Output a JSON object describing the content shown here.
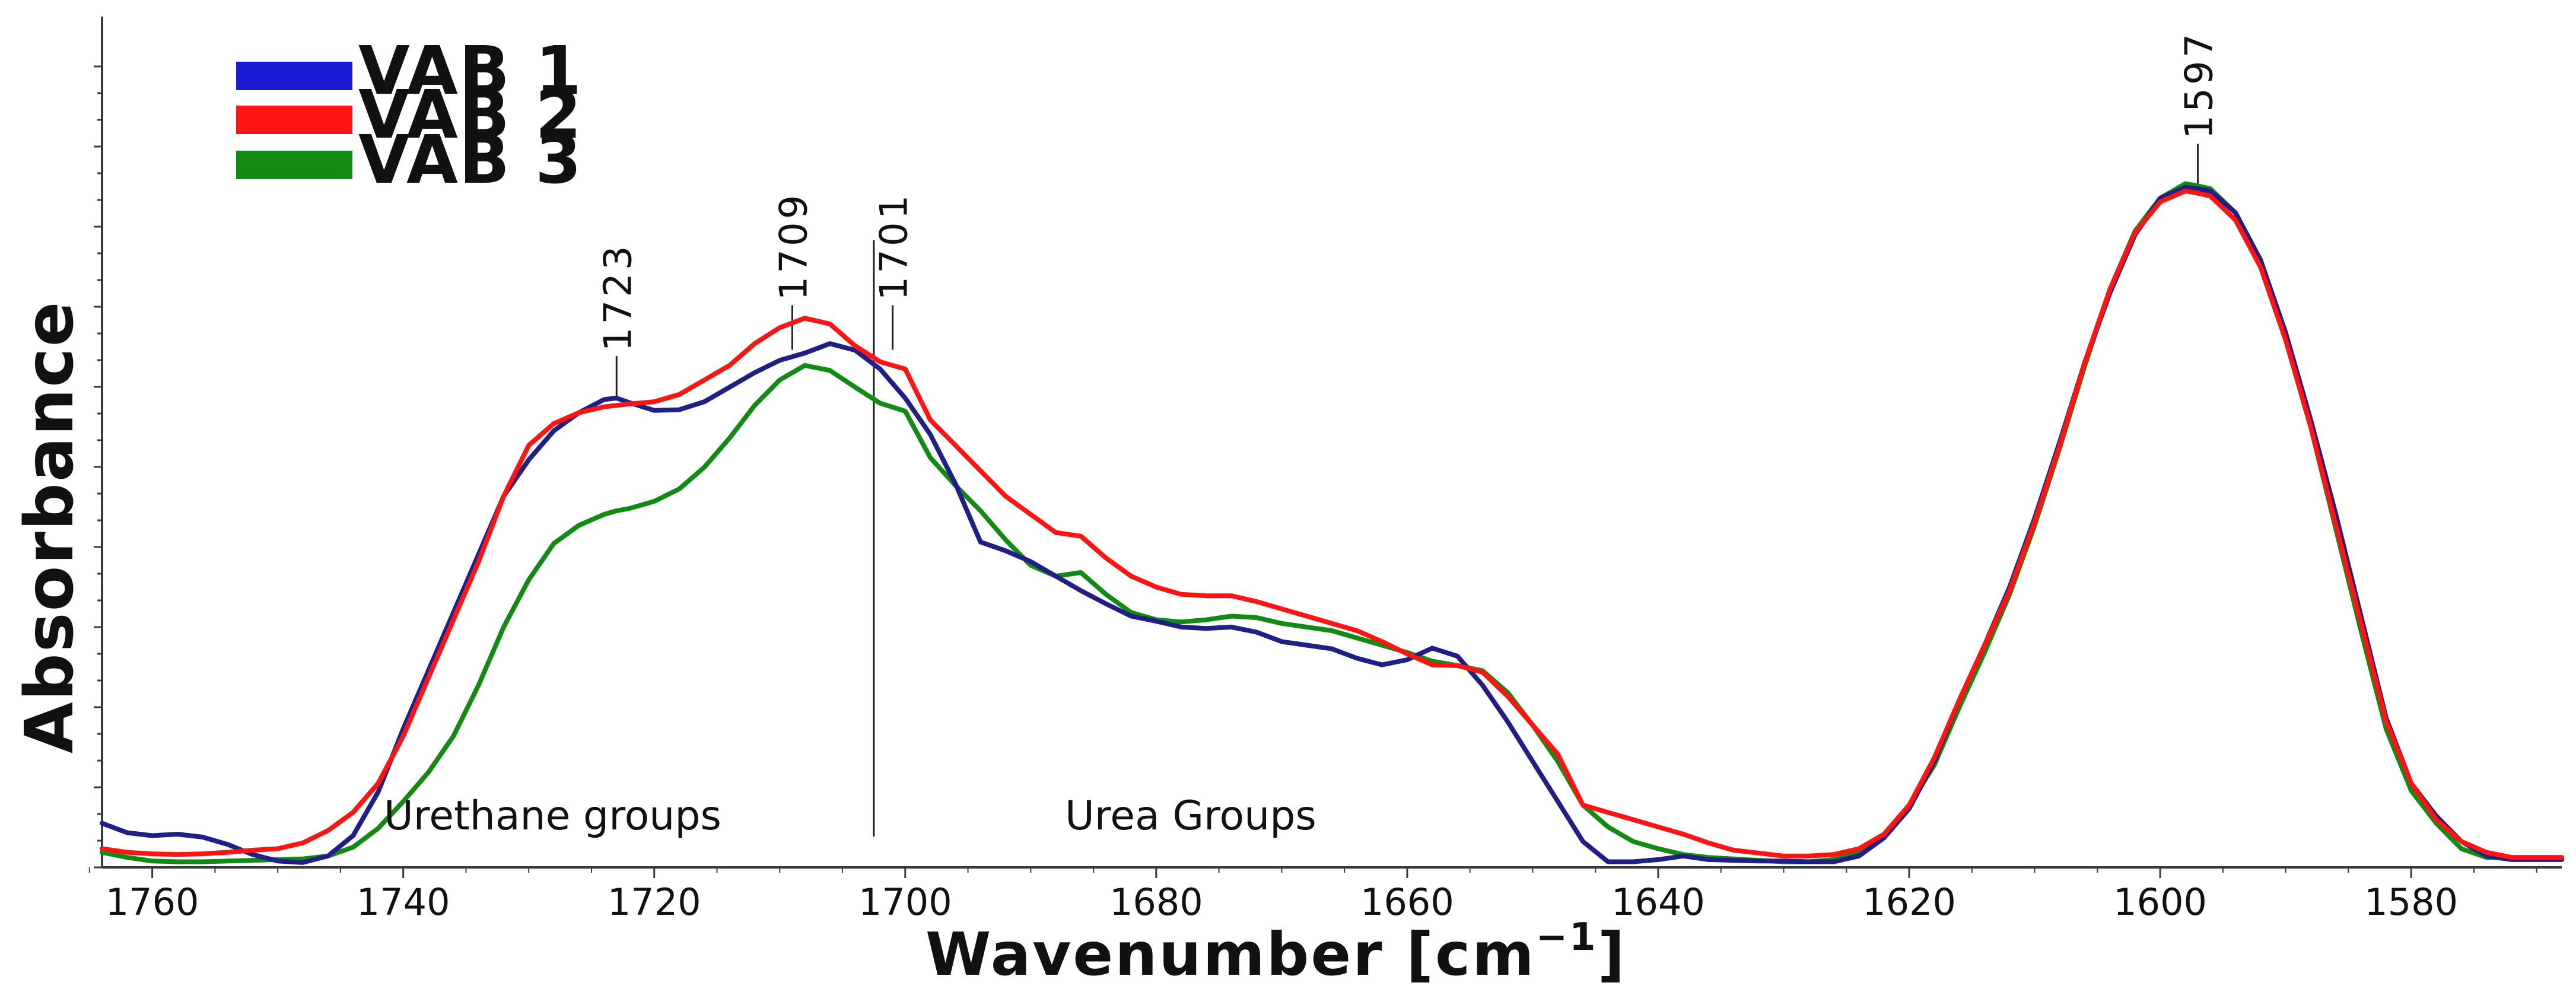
{
  "chart_data": {
    "type": "line",
    "title": "",
    "xlabel": "Wavenumber [cm",
    "xlabel_sup": "−1",
    "xlabel_end": "]",
    "ylabel": "Absorbance",
    "xlim": [
      1764,
      1568
    ],
    "ylim": [
      0,
      1.0
    ],
    "x_inverted": true,
    "grid": false,
    "legend_position": "top-left",
    "x_ticks": [
      1760,
      1740,
      1720,
      1700,
      1680,
      1660,
      1640,
      1620,
      1600,
      1580
    ],
    "x_tick_labels": [
      "1760",
      "1740",
      "1720",
      "1700",
      "1680",
      "1660",
      "1640",
      "1620",
      "1600",
      "1580"
    ],
    "series": [
      {
        "name": "VAB 1",
        "color": "#1f1f86",
        "legend_color": "#1b1bd4",
        "x": [
          1764,
          1762,
          1760,
          1758,
          1756,
          1754,
          1752,
          1750,
          1748,
          1746,
          1744,
          1742,
          1740,
          1738,
          1736,
          1734,
          1732,
          1730,
          1728,
          1726,
          1724,
          1723,
          1722,
          1720,
          1718,
          1716,
          1714,
          1712,
          1710,
          1708,
          1706,
          1704,
          1702,
          1700,
          1698,
          1696,
          1694,
          1692,
          1690,
          1688,
          1686,
          1684,
          1682,
          1680,
          1678,
          1676,
          1674,
          1672,
          1670,
          1668,
          1666,
          1664,
          1662,
          1660,
          1658,
          1656,
          1654,
          1652,
          1650,
          1648,
          1646,
          1644,
          1642,
          1640,
          1638,
          1636,
          1634,
          1632,
          1630,
          1628,
          1626,
          1624,
          1622,
          1620,
          1618,
          1616,
          1614,
          1612,
          1610,
          1608,
          1606,
          1604,
          1602,
          1600,
          1598,
          1597,
          1596,
          1594,
          1592,
          1590,
          1588,
          1586,
          1584,
          1582,
          1580,
          1578,
          1576,
          1574,
          1572,
          1570,
          1568
        ],
        "values": [
          0.055,
          0.042,
          0.038,
          0.04,
          0.036,
          0.026,
          0.012,
          0.003,
          0.001,
          0.01,
          0.038,
          0.098,
          0.185,
          0.265,
          0.345,
          0.425,
          0.505,
          0.555,
          0.595,
          0.62,
          0.638,
          0.64,
          0.634,
          0.623,
          0.624,
          0.635,
          0.655,
          0.675,
          0.692,
          0.702,
          0.715,
          0.706,
          0.68,
          0.64,
          0.59,
          0.522,
          0.442,
          0.43,
          0.415,
          0.395,
          0.375,
          0.357,
          0.34,
          0.333,
          0.325,
          0.323,
          0.325,
          0.318,
          0.305,
          0.3,
          0.295,
          0.282,
          0.273,
          0.28,
          0.296,
          0.285,
          0.245,
          0.195,
          0.14,
          0.085,
          0.03,
          0.002,
          0.002,
          0.005,
          0.01,
          0.005,
          0.004,
          0.003,
          0.003,
          0.002,
          0.002,
          0.01,
          0.035,
          0.075,
          0.14,
          0.225,
          0.3,
          0.38,
          0.475,
          0.58,
          0.69,
          0.785,
          0.865,
          0.915,
          0.93,
          0.928,
          0.925,
          0.895,
          0.83,
          0.73,
          0.61,
          0.48,
          0.34,
          0.2,
          0.11,
          0.065,
          0.03,
          0.01,
          0.005,
          0.005,
          0.005
        ]
      },
      {
        "name": "VAB 2",
        "color": "#ff1414",
        "legend_color": "#ff1414",
        "x": [
          1764,
          1762,
          1760,
          1758,
          1756,
          1754,
          1752,
          1750,
          1748,
          1746,
          1744,
          1742,
          1740,
          1738,
          1736,
          1734,
          1732,
          1730,
          1728,
          1726,
          1724,
          1723,
          1722,
          1720,
          1718,
          1716,
          1714,
          1712,
          1710,
          1708,
          1706,
          1704,
          1702,
          1700,
          1698,
          1696,
          1694,
          1692,
          1690,
          1688,
          1686,
          1684,
          1682,
          1680,
          1678,
          1676,
          1674,
          1672,
          1670,
          1668,
          1666,
          1664,
          1662,
          1660,
          1658,
          1656,
          1654,
          1652,
          1650,
          1648,
          1646,
          1644,
          1642,
          1640,
          1638,
          1636,
          1634,
          1632,
          1630,
          1628,
          1626,
          1624,
          1622,
          1620,
          1618,
          1616,
          1614,
          1612,
          1610,
          1608,
          1606,
          1604,
          1602,
          1600,
          1598,
          1597,
          1596,
          1594,
          1592,
          1590,
          1588,
          1586,
          1584,
          1582,
          1580,
          1578,
          1576,
          1574,
          1572,
          1570,
          1568
        ],
        "values": [
          0.02,
          0.015,
          0.013,
          0.012,
          0.013,
          0.015,
          0.018,
          0.02,
          0.028,
          0.045,
          0.07,
          0.11,
          0.175,
          0.255,
          0.335,
          0.415,
          0.505,
          0.575,
          0.605,
          0.62,
          0.628,
          0.63,
          0.632,
          0.635,
          0.645,
          0.665,
          0.685,
          0.715,
          0.737,
          0.75,
          0.742,
          0.712,
          0.69,
          0.68,
          0.61,
          0.575,
          0.54,
          0.505,
          0.48,
          0.455,
          0.45,
          0.42,
          0.395,
          0.38,
          0.37,
          0.368,
          0.368,
          0.36,
          0.35,
          0.34,
          0.33,
          0.32,
          0.305,
          0.288,
          0.273,
          0.272,
          0.263,
          0.23,
          0.19,
          0.15,
          0.08,
          0.07,
          0.06,
          0.05,
          0.04,
          0.028,
          0.018,
          0.014,
          0.01,
          0.01,
          0.012,
          0.02,
          0.04,
          0.08,
          0.145,
          0.225,
          0.3,
          0.375,
          0.47,
          0.575,
          0.69,
          0.79,
          0.868,
          0.91,
          0.925,
          0.922,
          0.918,
          0.885,
          0.82,
          0.72,
          0.6,
          0.465,
          0.33,
          0.195,
          0.11,
          0.06,
          0.03,
          0.015,
          0.008,
          0.008,
          0.008
        ]
      },
      {
        "name": "VAB 3",
        "color": "#138a13",
        "legend_color": "#138a13",
        "x": [
          1764,
          1762,
          1760,
          1758,
          1756,
          1754,
          1752,
          1750,
          1748,
          1746,
          1744,
          1742,
          1740,
          1738,
          1736,
          1734,
          1732,
          1730,
          1728,
          1726,
          1724,
          1723,
          1722,
          1720,
          1718,
          1716,
          1714,
          1712,
          1710,
          1708,
          1706,
          1704,
          1702,
          1700,
          1698,
          1696,
          1694,
          1692,
          1690,
          1688,
          1686,
          1684,
          1682,
          1680,
          1678,
          1676,
          1674,
          1672,
          1670,
          1668,
          1666,
          1664,
          1662,
          1660,
          1658,
          1656,
          1654,
          1652,
          1650,
          1648,
          1646,
          1644,
          1642,
          1640,
          1638,
          1636,
          1634,
          1632,
          1630,
          1628,
          1626,
          1624,
          1622,
          1620,
          1618,
          1616,
          1614,
          1612,
          1610,
          1608,
          1606,
          1604,
          1602,
          1600,
          1598,
          1597,
          1596,
          1594,
          1592,
          1590,
          1588,
          1586,
          1584,
          1582,
          1580,
          1578,
          1576,
          1574,
          1572,
          1570,
          1568
        ],
        "values": [
          0.015,
          0.008,
          0.003,
          0.002,
          0.002,
          0.003,
          0.004,
          0.005,
          0.006,
          0.01,
          0.022,
          0.048,
          0.085,
          0.125,
          0.175,
          0.245,
          0.325,
          0.39,
          0.44,
          0.465,
          0.48,
          0.485,
          0.488,
          0.498,
          0.515,
          0.545,
          0.585,
          0.63,
          0.665,
          0.685,
          0.678,
          0.655,
          0.633,
          0.622,
          0.558,
          0.52,
          0.485,
          0.445,
          0.41,
          0.395,
          0.4,
          0.37,
          0.345,
          0.335,
          0.332,
          0.335,
          0.34,
          0.338,
          0.33,
          0.325,
          0.32,
          0.31,
          0.3,
          0.29,
          0.278,
          0.272,
          0.265,
          0.235,
          0.19,
          0.14,
          0.08,
          0.05,
          0.03,
          0.02,
          0.012,
          0.008,
          0.006,
          0.004,
          0.002,
          0.002,
          0.005,
          0.015,
          0.04,
          0.08,
          0.135,
          0.215,
          0.29,
          0.37,
          0.465,
          0.572,
          0.685,
          0.79,
          0.87,
          0.915,
          0.935,
          0.932,
          0.928,
          0.895,
          0.83,
          0.728,
          0.6,
          0.46,
          0.32,
          0.185,
          0.1,
          0.055,
          0.02,
          0.008,
          0.008,
          0.008,
          0.008
        ]
      }
    ],
    "peak_annotations": [
      {
        "label": "1723",
        "x": 1723,
        "series": "VAB 2"
      },
      {
        "label": "1709",
        "x": 1709,
        "series": "VAB 2"
      },
      {
        "label": "1701",
        "x": 1701,
        "series": "VAB 2"
      },
      {
        "label": "1597",
        "x": 1597,
        "series": "VAB 2"
      }
    ],
    "divider_x": 1702.5,
    "region_labels": [
      {
        "text": "Urethane groups",
        "position": "bottom-left of divider"
      },
      {
        "text": "Urea Groups",
        "position": "bottom-right of divider"
      }
    ]
  }
}
